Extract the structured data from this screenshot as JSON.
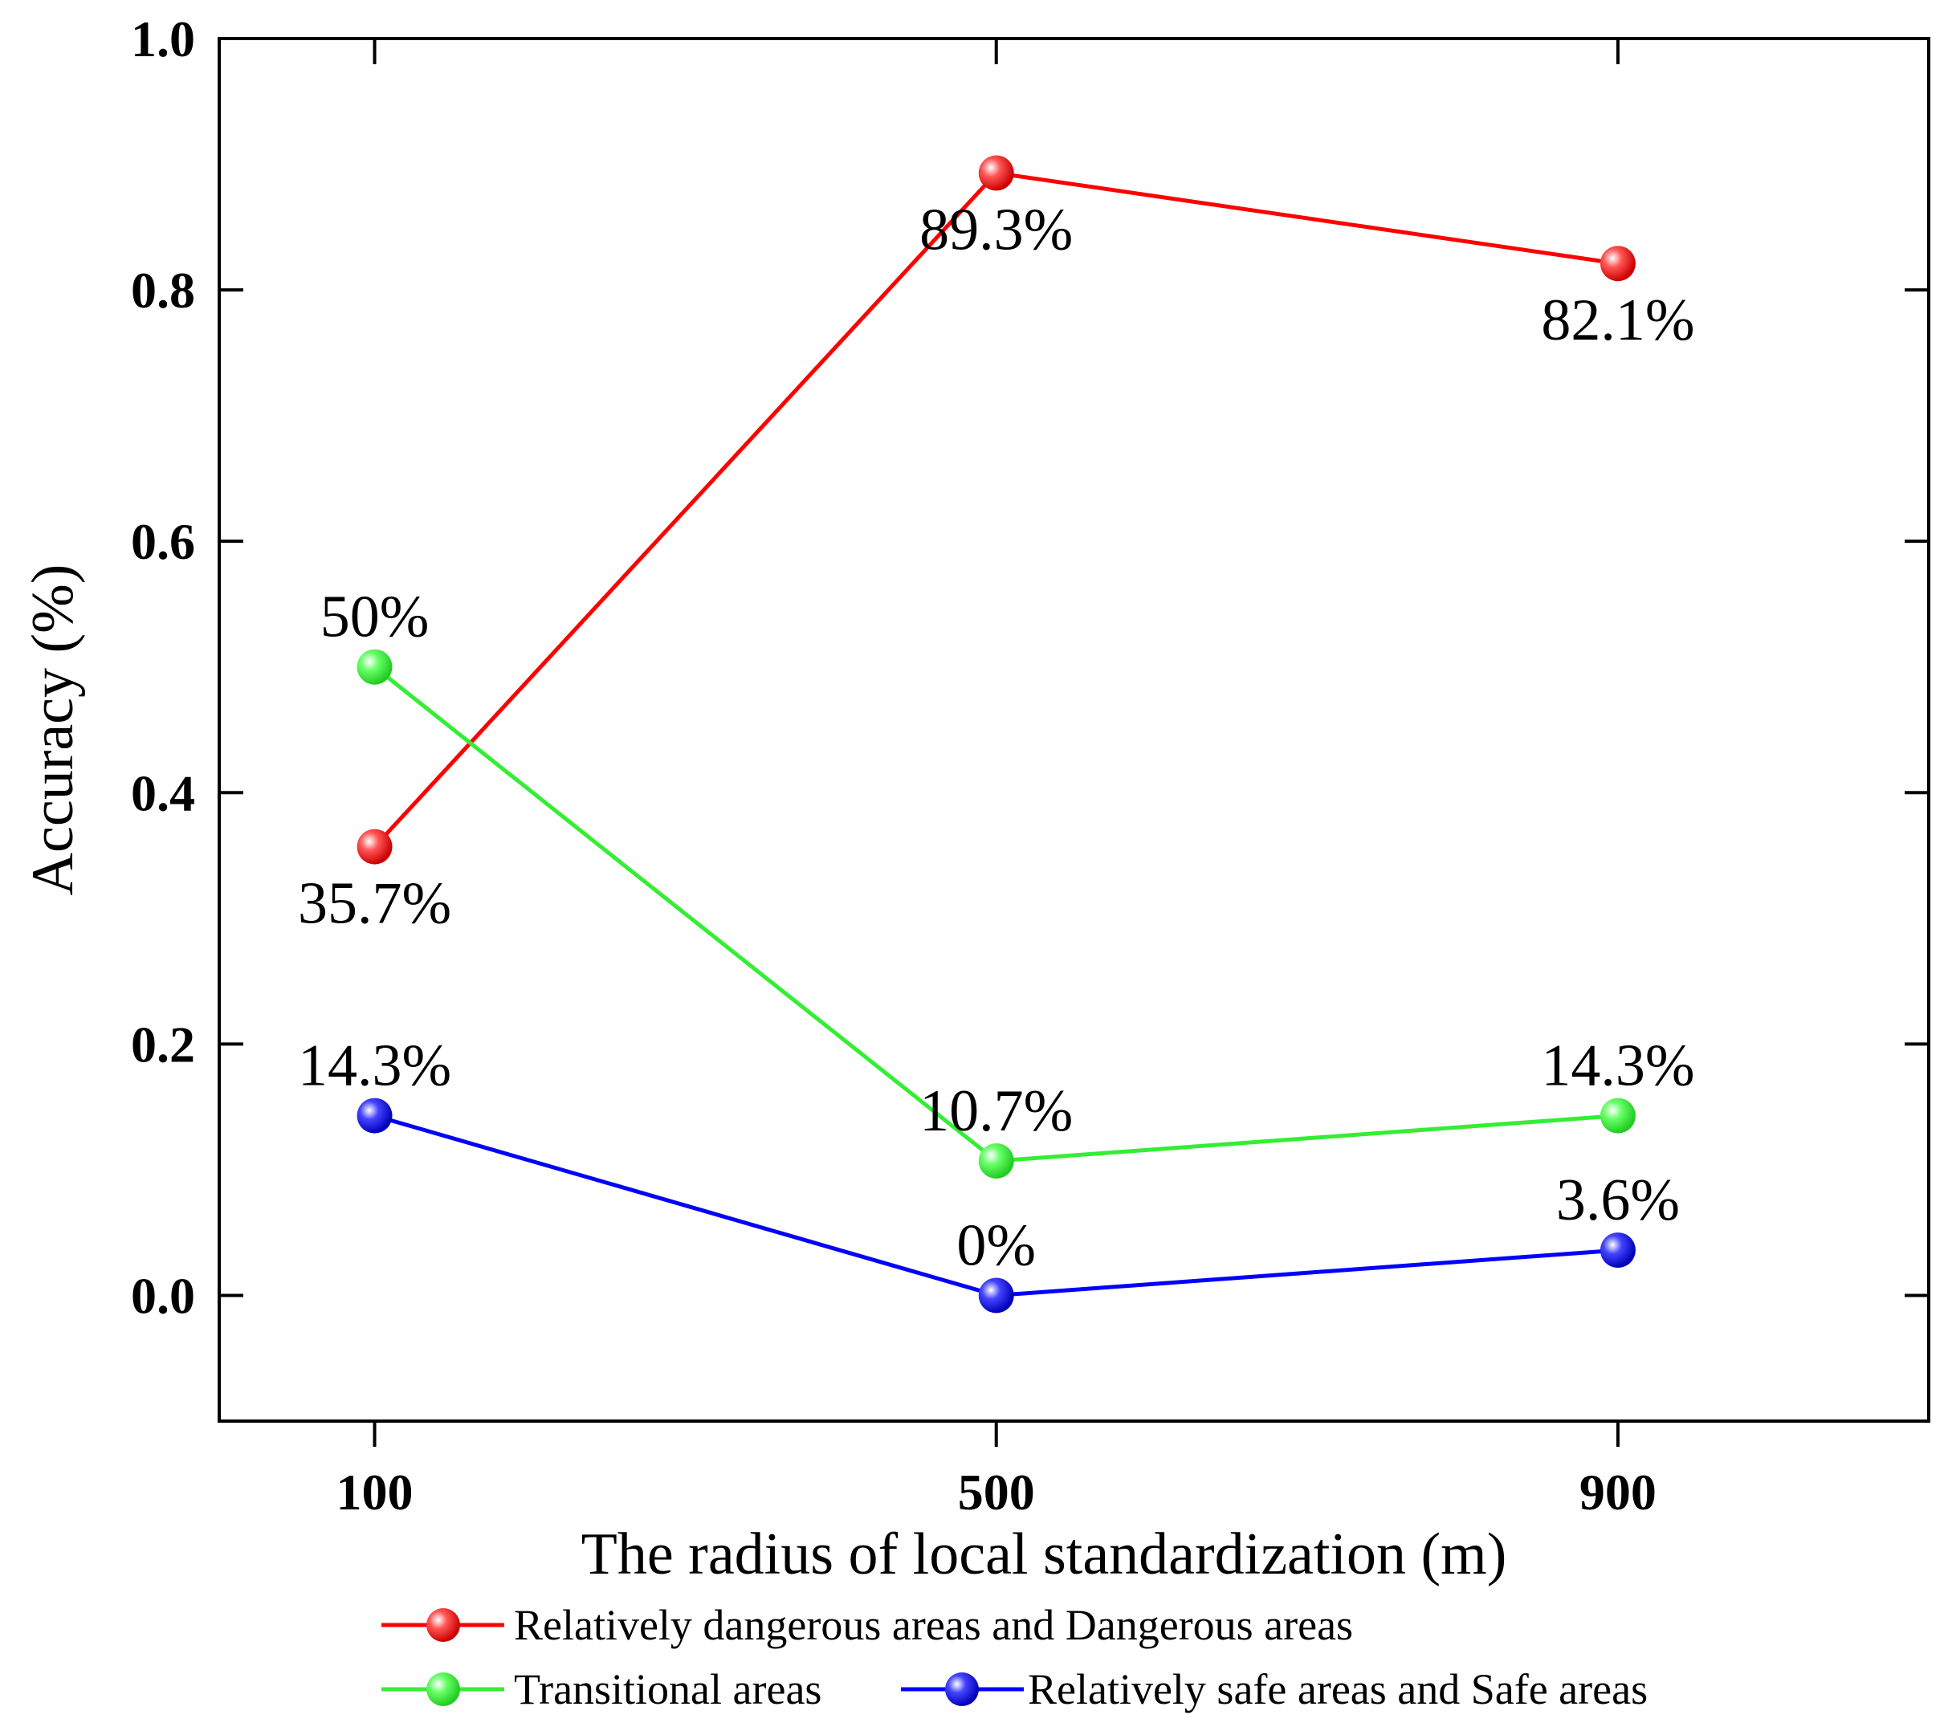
{
  "chart_data": {
    "type": "line",
    "title": "",
    "xlabel": "The radius of local standardization (m)",
    "ylabel": "Accuracy (%)",
    "x": [
      100,
      500,
      900
    ],
    "x_tick_labels": [
      "100",
      "500",
      "900"
    ],
    "xlim": [
      0,
      1100
    ],
    "ylim": [
      -0.1,
      1.0
    ],
    "y_ticks": [
      0.0,
      0.2,
      0.4,
      0.6,
      0.8,
      1.0
    ],
    "y_tick_labels": [
      "0.0",
      "0.2",
      "0.4",
      "0.6",
      "0.8",
      "1.0"
    ],
    "grid": false,
    "legend_position": "bottom",
    "series": [
      {
        "name": "Relatively dangerous areas and Dangerous areas",
        "color": "#ff0000",
        "values": [
          0.357,
          0.893,
          0.821
        ],
        "labels": [
          "35.7%",
          "89.3%",
          "82.1%"
        ],
        "label_positions": [
          "below",
          "below",
          "below"
        ]
      },
      {
        "name": "Transitional areas",
        "color": "#33ee33",
        "values": [
          0.5,
          0.107,
          0.143
        ],
        "labels": [
          "50%",
          "10.7%",
          "14.3%"
        ],
        "label_positions": [
          "above",
          "above",
          "above"
        ]
      },
      {
        "name": "Relatively safe areas and Safe areas",
        "color": "#0000ff",
        "values": [
          0.143,
          0.0,
          0.036
        ],
        "labels": [
          "14.3%",
          "0%",
          "3.6%"
        ],
        "label_positions": [
          "above",
          "above",
          "above"
        ]
      }
    ]
  }
}
